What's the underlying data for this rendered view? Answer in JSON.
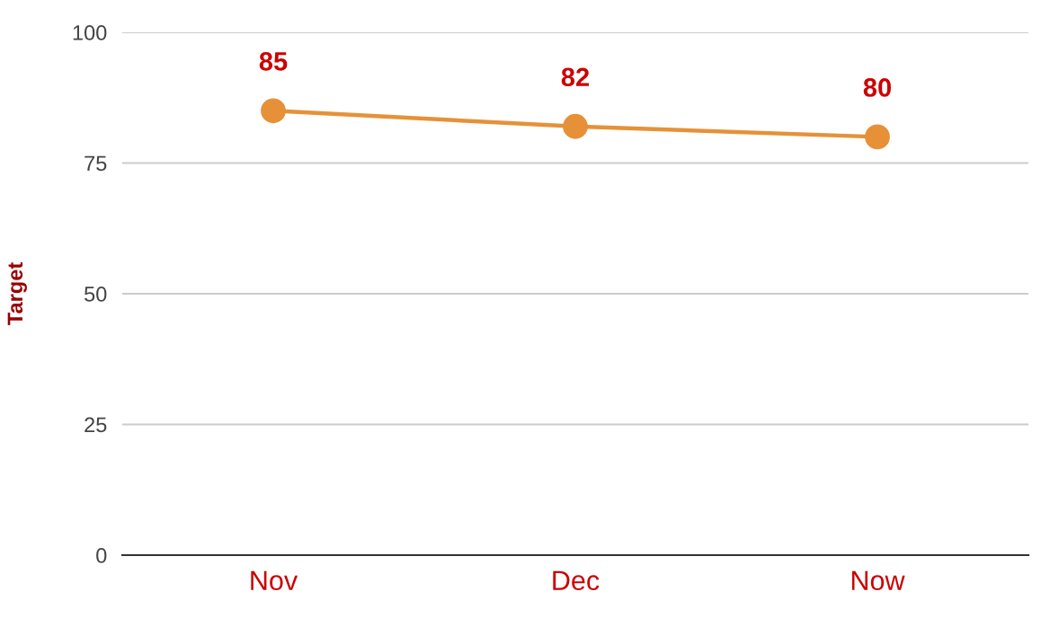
{
  "chart_data": {
    "type": "line",
    "ylabel": "Target",
    "categories": [
      "Nov",
      "Dec",
      "Now"
    ],
    "series": [
      {
        "color": "#e69138",
        "values": [
          85,
          82,
          80
        ]
      }
    ],
    "ylim": [
      0,
      100
    ],
    "yticks": [
      0,
      25,
      50,
      75,
      100
    ],
    "grid": "y",
    "marker": "circle",
    "line_style": "solid",
    "data_labels": true
  }
}
